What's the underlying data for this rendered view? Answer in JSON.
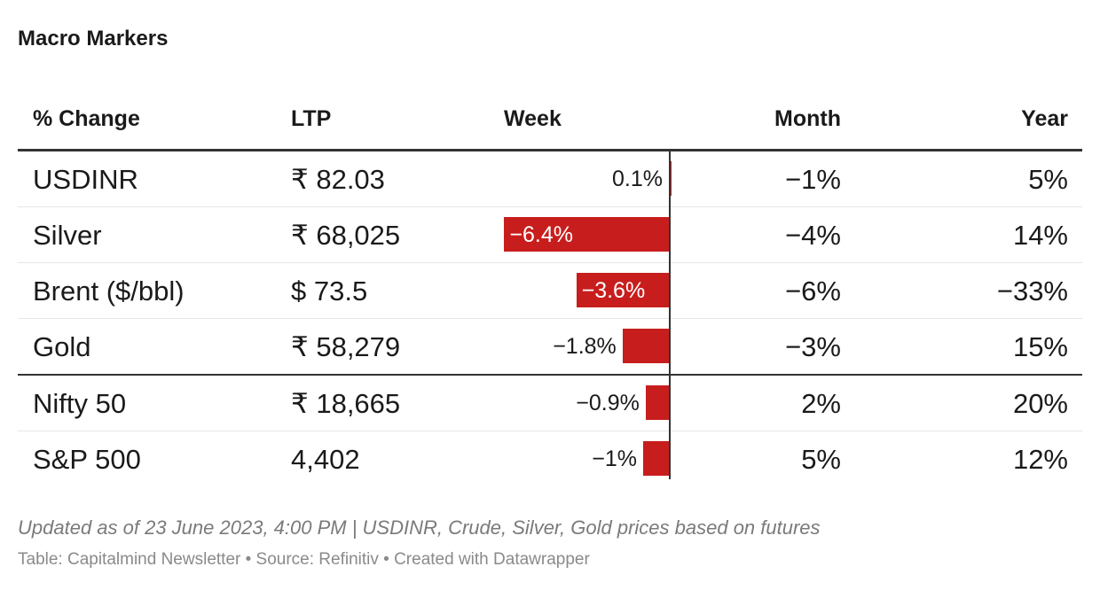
{
  "title": "Macro Markers",
  "columns": {
    "name": "% Change",
    "ltp": "LTP",
    "week": "Week",
    "month": "Month",
    "year": "Year"
  },
  "rows": [
    {
      "name": "USDINR",
      "ltp": "₹ 82.03",
      "week_label": "0.1%",
      "month": "−1%",
      "year": "5%"
    },
    {
      "name": "Silver",
      "ltp": "₹ 68,025",
      "week_label": "−6.4%",
      "month": "−4%",
      "year": "14%"
    },
    {
      "name": "Brent ($/bbl)",
      "ltp": "$ 73.5",
      "week_label": "−3.6%",
      "month": "−6%",
      "year": "−33%"
    },
    {
      "name": "Gold",
      "ltp": "₹ 58,279",
      "week_label": "−1.8%",
      "month": "−3%",
      "year": "15%"
    },
    {
      "name": "Nifty 50",
      "ltp": "₹ 18,665",
      "week_label": "−0.9%",
      "month": "2%",
      "year": "20%"
    },
    {
      "name": "S&P 500",
      "ltp": "4,402",
      "week_label": "−1%",
      "month": "5%",
      "year": "12%"
    }
  ],
  "colors": {
    "negative_bar": "#c71e1d",
    "text": "#1a1a1a"
  },
  "chart_data": {
    "type": "table",
    "title": "Macro Markers",
    "columns": [
      "% Change",
      "LTP",
      "Week",
      "Month",
      "Year"
    ],
    "bar_column": "Week",
    "categories": [
      "USDINR",
      "Silver",
      "Brent ($/bbl)",
      "Gold",
      "Nifty 50",
      "S&P 500"
    ],
    "week_values": [
      0.1,
      -6.4,
      -3.6,
      -1.8,
      -0.9,
      -1
    ],
    "month_values": [
      -1,
      -4,
      -6,
      -3,
      2,
      5
    ],
    "year_values": [
      5,
      14,
      -33,
      15,
      20,
      12
    ],
    "week_range": [
      -6.4,
      0.1
    ]
  },
  "footnote": "Updated as of 23 June 2023, 4:00 PM | USDINR, Crude, Silver, Gold prices based on futures",
  "source": "Table: Capitalmind Newsletter • Source: Refinitiv • Created with Datawrapper"
}
